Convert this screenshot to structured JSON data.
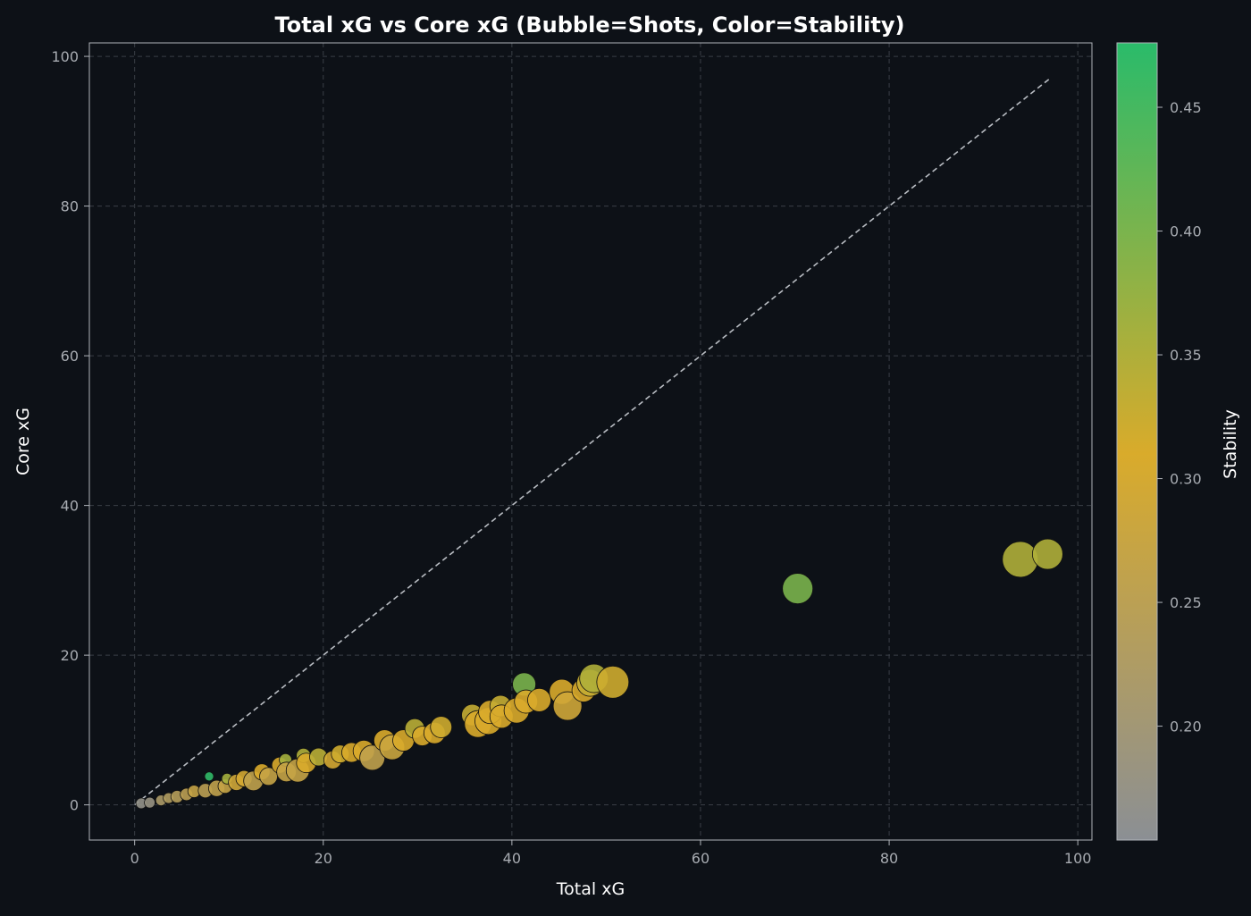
{
  "chart_data": {
    "type": "scatter",
    "title": "Total xG vs Core xG (Bubble=Shots, Color=Stability)",
    "xlabel": "Total xG",
    "ylabel": "Core xG",
    "xlim": [
      -4.8,
      101.5
    ],
    "ylim": [
      -4.7,
      101.8
    ],
    "xticks": [
      0,
      20,
      40,
      60,
      80,
      100
    ],
    "yticks": [
      0,
      20,
      40,
      60,
      80,
      100
    ],
    "grid": true,
    "reference_line": {
      "label": "y = x",
      "from": [
        0,
        0
      ],
      "to": [
        97,
        97
      ]
    },
    "colorbar": {
      "label": "Stability",
      "range": [
        0.154,
        0.476
      ],
      "ticks": [
        "0.20",
        "0.25",
        "0.30",
        "0.35",
        "0.40",
        "0.45"
      ],
      "colors": [
        "#8b8f94",
        "#d9ab2b",
        "#2abb6a"
      ],
      "stops": [
        0.154,
        0.31,
        0.476
      ]
    },
    "points": [
      {
        "total": 96.8,
        "core": 33.5,
        "shots": 113,
        "stability": 0.35
      },
      {
        "total": 93.9,
        "core": 32.8,
        "shots": 156,
        "stability": 0.35
      },
      {
        "total": 70.3,
        "core": 28.9,
        "shots": 113,
        "stability": 0.4
      },
      {
        "total": 50.7,
        "core": 16.4,
        "shots": 126,
        "stability": 0.32
      },
      {
        "total": 48.7,
        "core": 16.9,
        "shots": 100,
        "stability": 0.35
      },
      {
        "total": 48.3,
        "core": 16.3,
        "shots": 88,
        "stability": 0.33
      },
      {
        "total": 47.6,
        "core": 15.3,
        "shots": 66,
        "stability": 0.31
      },
      {
        "total": 45.9,
        "core": 13.2,
        "shots": 100,
        "stability": 0.29
      },
      {
        "total": 45.3,
        "core": 15.1,
        "shots": 77,
        "stability": 0.31
      },
      {
        "total": 42.9,
        "core": 14.0,
        "shots": 66,
        "stability": 0.31
      },
      {
        "total": 41.5,
        "core": 13.8,
        "shots": 66,
        "stability": 0.31
      },
      {
        "total": 41.3,
        "core": 16.1,
        "shots": 66,
        "stability": 0.4
      },
      {
        "total": 40.5,
        "core": 12.6,
        "shots": 77,
        "stability": 0.31
      },
      {
        "total": 38.8,
        "core": 13.2,
        "shots": 56,
        "stability": 0.33
      },
      {
        "total": 38.9,
        "core": 11.8,
        "shots": 66,
        "stability": 0.31
      },
      {
        "total": 37.7,
        "core": 12.4,
        "shots": 66,
        "stability": 0.31
      },
      {
        "total": 37.5,
        "core": 11.2,
        "shots": 88,
        "stability": 0.31
      },
      {
        "total": 36.4,
        "core": 10.8,
        "shots": 88,
        "stability": 0.31
      },
      {
        "total": 35.8,
        "core": 12.0,
        "shots": 56,
        "stability": 0.33
      },
      {
        "total": 32.5,
        "core": 10.4,
        "shots": 56,
        "stability": 0.32
      },
      {
        "total": 31.8,
        "core": 9.6,
        "shots": 56,
        "stability": 0.31
      },
      {
        "total": 29.7,
        "core": 10.2,
        "shots": 47,
        "stability": 0.34
      },
      {
        "total": 30.5,
        "core": 9.2,
        "shots": 47,
        "stability": 0.31
      },
      {
        "total": 28.5,
        "core": 8.6,
        "shots": 56,
        "stability": 0.31
      },
      {
        "total": 27.3,
        "core": 7.7,
        "shots": 77,
        "stability": 0.28
      },
      {
        "total": 26.5,
        "core": 8.6,
        "shots": 56,
        "stability": 0.31
      },
      {
        "total": 25.2,
        "core": 6.3,
        "shots": 77,
        "stability": 0.26
      },
      {
        "total": 24.3,
        "core": 7.2,
        "shots": 56,
        "stability": 0.31
      },
      {
        "total": 23.0,
        "core": 7.0,
        "shots": 47,
        "stability": 0.31
      },
      {
        "total": 21.8,
        "core": 6.8,
        "shots": 39,
        "stability": 0.32
      },
      {
        "total": 21.0,
        "core": 6.0,
        "shots": 39,
        "stability": 0.3
      },
      {
        "total": 19.5,
        "core": 6.4,
        "shots": 39,
        "stability": 0.34
      },
      {
        "total": 18.2,
        "core": 5.6,
        "shots": 47,
        "stability": 0.31
      },
      {
        "total": 17.9,
        "core": 6.6,
        "shots": 25,
        "stability": 0.35
      },
      {
        "total": 17.3,
        "core": 4.6,
        "shots": 66,
        "stability": 0.27
      },
      {
        "total": 16.1,
        "core": 4.4,
        "shots": 47,
        "stability": 0.27
      },
      {
        "total": 16.0,
        "core": 6.0,
        "shots": 19,
        "stability": 0.36
      },
      {
        "total": 15.4,
        "core": 5.3,
        "shots": 32,
        "stability": 0.31
      },
      {
        "total": 14.2,
        "core": 3.8,
        "shots": 39,
        "stability": 0.27
      },
      {
        "total": 13.5,
        "core": 4.4,
        "shots": 32,
        "stability": 0.31
      },
      {
        "total": 12.6,
        "core": 3.2,
        "shots": 47,
        "stability": 0.26
      },
      {
        "total": 11.6,
        "core": 3.5,
        "shots": 32,
        "stability": 0.3
      },
      {
        "total": 10.8,
        "core": 3.0,
        "shots": 32,
        "stability": 0.29
      },
      {
        "total": 9.8,
        "core": 3.5,
        "shots": 14,
        "stability": 0.36
      },
      {
        "total": 9.6,
        "core": 2.5,
        "shots": 25,
        "stability": 0.27
      },
      {
        "total": 8.7,
        "core": 2.2,
        "shots": 32,
        "stability": 0.26
      },
      {
        "total": 7.9,
        "core": 3.8,
        "shots": 10,
        "stability": 0.47
      },
      {
        "total": 7.5,
        "core": 1.9,
        "shots": 25,
        "stability": 0.25
      },
      {
        "total": 6.3,
        "core": 1.8,
        "shots": 19,
        "stability": 0.27
      },
      {
        "total": 5.5,
        "core": 1.4,
        "shots": 19,
        "stability": 0.25
      },
      {
        "total": 4.5,
        "core": 1.1,
        "shots": 19,
        "stability": 0.24
      },
      {
        "total": 3.6,
        "core": 0.9,
        "shots": 14,
        "stability": 0.23
      },
      {
        "total": 2.8,
        "core": 0.6,
        "shots": 14,
        "stability": 0.22
      },
      {
        "total": 1.6,
        "core": 0.3,
        "shots": 14,
        "stability": 0.18
      },
      {
        "total": 0.7,
        "core": 0.2,
        "shots": 14,
        "stability": 0.17
      }
    ]
  }
}
